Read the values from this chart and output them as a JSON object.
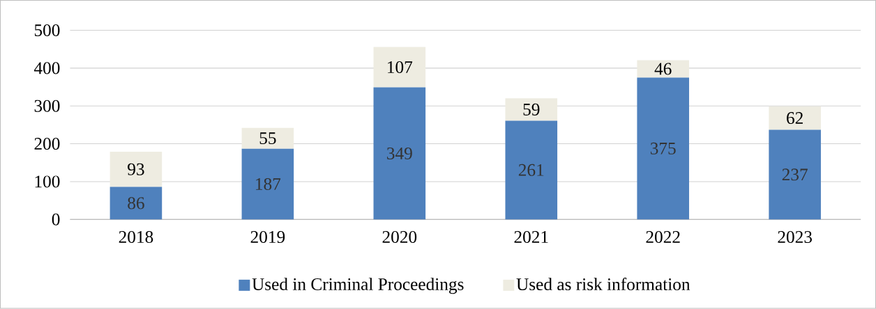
{
  "chart_data": {
    "type": "bar",
    "stacked": true,
    "categories": [
      "2018",
      "2019",
      "2020",
      "2021",
      "2022",
      "2023"
    ],
    "series": [
      {
        "name": "Used in Criminal Proceedings",
        "color": "#4f81bd",
        "values": [
          86,
          187,
          349,
          261,
          375,
          237
        ]
      },
      {
        "name": "Used as risk information",
        "color": "#eeece1",
        "values": [
          93,
          55,
          107,
          59,
          46,
          62
        ]
      }
    ],
    "ylim": [
      0,
      500
    ],
    "yticks": [
      0,
      100,
      200,
      300,
      400,
      500
    ],
    "grid": "y",
    "legend": "bottom",
    "data_labels": true
  }
}
